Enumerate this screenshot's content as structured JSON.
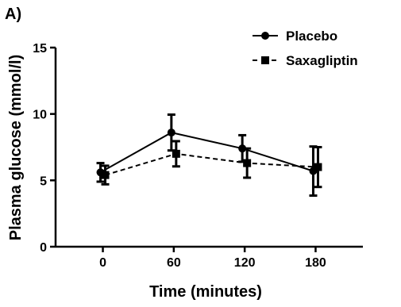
{
  "chart_data": {
    "type": "line",
    "panel_label": "A)",
    "title": "",
    "xlabel": "Time (minutes)",
    "ylabel": "Plasma glucose (mmol/l)",
    "x": [
      0,
      60,
      120,
      180
    ],
    "x_tick_labels": [
      "0",
      "60",
      "120",
      "180"
    ],
    "y_ticks": [
      0,
      5,
      10,
      15
    ],
    "y_tick_labels": [
      "0",
      "5",
      "10",
      "15"
    ],
    "xlim": [
      -40,
      220
    ],
    "ylim": [
      0,
      15
    ],
    "grid": false,
    "legend_position": "top-right",
    "series": [
      {
        "name": "Placebo",
        "marker": "circle",
        "line_style": "solid",
        "color": "#000000",
        "values": [
          5.6,
          8.6,
          7.4,
          5.7
        ],
        "error": [
          0.7,
          1.35,
          1.0,
          1.85
        ]
      },
      {
        "name": "Saxagliptin",
        "marker": "square",
        "line_style": "dashed",
        "color": "#000000",
        "values": [
          5.4,
          7.0,
          6.3,
          6.0
        ],
        "error": [
          0.7,
          0.95,
          1.1,
          1.5
        ]
      }
    ]
  }
}
